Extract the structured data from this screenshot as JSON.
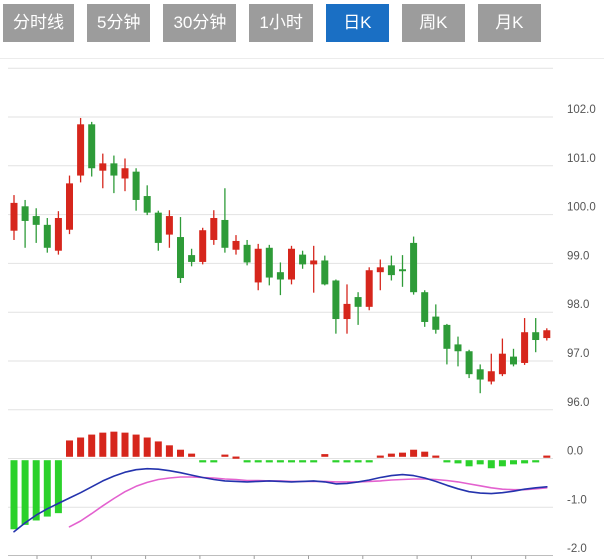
{
  "toolbar": {
    "tabs": [
      {
        "label": "分时线",
        "active": false
      },
      {
        "label": "5分钟",
        "active": false
      },
      {
        "label": "30分钟",
        "active": false
      },
      {
        "label": "1小时",
        "active": false
      },
      {
        "label": "日K",
        "active": true
      },
      {
        "label": "周K",
        "active": false
      },
      {
        "label": "月K",
        "active": false
      }
    ],
    "colors": {
      "active_bg": "#1a6fc4",
      "inactive_bg": "#9c9c9c",
      "text": "#ffffff"
    }
  },
  "chart_data": {
    "type": "candlestick",
    "title": "",
    "timeframe_selected": "日K",
    "legend_position": "none",
    "grid": true,
    "price_axis": {
      "position": "right",
      "tick_labels": [
        "102.0",
        "101.0",
        "100.0",
        "99.0",
        "98.0",
        "97.0",
        "96.0"
      ],
      "tick_values": [
        102,
        101,
        100,
        99,
        98,
        97,
        96
      ],
      "ylim": [
        96,
        103
      ]
    },
    "indicator_axis": {
      "position": "right",
      "tick_labels": [
        "0.0",
        "-1.0",
        "-2.0"
      ],
      "tick_values": [
        0,
        -1,
        -2
      ],
      "ylim": [
        -2,
        0.6
      ]
    },
    "candles": [
      {
        "o": 99.67,
        "h": 100.4,
        "l": 99.48,
        "c": 100.24
      },
      {
        "o": 100.17,
        "h": 100.3,
        "l": 99.32,
        "c": 99.87
      },
      {
        "o": 99.97,
        "h": 100.13,
        "l": 99.42,
        "c": 99.79
      },
      {
        "o": 99.79,
        "h": 99.93,
        "l": 99.22,
        "c": 99.32
      },
      {
        "o": 99.26,
        "h": 100.07,
        "l": 99.18,
        "c": 99.93
      },
      {
        "o": 99.69,
        "h": 100.8,
        "l": 99.6,
        "c": 100.64
      },
      {
        "o": 100.8,
        "h": 101.98,
        "l": 100.66,
        "c": 101.85
      },
      {
        "o": 101.85,
        "h": 101.9,
        "l": 100.78,
        "c": 100.95
      },
      {
        "o": 100.9,
        "h": 101.25,
        "l": 100.54,
        "c": 101.05
      },
      {
        "o": 101.05,
        "h": 101.21,
        "l": 100.44,
        "c": 100.8
      },
      {
        "o": 100.74,
        "h": 101.15,
        "l": 100.48,
        "c": 100.95
      },
      {
        "o": 100.88,
        "h": 100.95,
        "l": 100.08,
        "c": 100.3
      },
      {
        "o": 100.38,
        "h": 100.6,
        "l": 99.99,
        "c": 100.04
      },
      {
        "o": 100.04,
        "h": 100.08,
        "l": 99.26,
        "c": 99.42
      },
      {
        "o": 99.59,
        "h": 100.09,
        "l": 99.32,
        "c": 99.97
      },
      {
        "o": 99.54,
        "h": 99.95,
        "l": 98.6,
        "c": 98.7
      },
      {
        "o": 99.17,
        "h": 99.3,
        "l": 98.94,
        "c": 99.03
      },
      {
        "o": 99.03,
        "h": 99.73,
        "l": 98.98,
        "c": 99.68
      },
      {
        "o": 99.48,
        "h": 100.09,
        "l": 99.38,
        "c": 99.93
      },
      {
        "o": 99.89,
        "h": 100.54,
        "l": 99.22,
        "c": 99.32
      },
      {
        "o": 99.28,
        "h": 99.58,
        "l": 99.18,
        "c": 99.46
      },
      {
        "o": 99.38,
        "h": 99.48,
        "l": 98.96,
        "c": 99.02
      },
      {
        "o": 98.61,
        "h": 99.4,
        "l": 98.45,
        "c": 99.3
      },
      {
        "o": 99.32,
        "h": 99.38,
        "l": 98.55,
        "c": 98.71
      },
      {
        "o": 98.82,
        "h": 99.02,
        "l": 98.35,
        "c": 98.67
      },
      {
        "o": 98.67,
        "h": 99.36,
        "l": 98.57,
        "c": 99.3
      },
      {
        "o": 99.18,
        "h": 99.26,
        "l": 98.89,
        "c": 98.98
      },
      {
        "o": 98.98,
        "h": 99.36,
        "l": 98.4,
        "c": 99.06
      },
      {
        "o": 99.06,
        "h": 99.16,
        "l": 98.55,
        "c": 98.57
      },
      {
        "o": 98.65,
        "h": 98.67,
        "l": 97.56,
        "c": 97.86
      },
      {
        "o": 97.86,
        "h": 98.57,
        "l": 97.56,
        "c": 98.17
      },
      {
        "o": 98.31,
        "h": 98.41,
        "l": 97.74,
        "c": 98.11
      },
      {
        "o": 98.11,
        "h": 98.92,
        "l": 98.04,
        "c": 98.86
      },
      {
        "o": 98.82,
        "h": 99.08,
        "l": 98.45,
        "c": 98.92
      },
      {
        "o": 98.96,
        "h": 99.16,
        "l": 98.65,
        "c": 98.76
      },
      {
        "o": 98.88,
        "h": 99.17,
        "l": 98.52,
        "c": 98.84
      },
      {
        "o": 99.42,
        "h": 99.55,
        "l": 98.36,
        "c": 98.41
      },
      {
        "o": 98.41,
        "h": 98.45,
        "l": 97.7,
        "c": 97.8
      },
      {
        "o": 97.91,
        "h": 98.16,
        "l": 97.56,
        "c": 97.64
      },
      {
        "o": 97.74,
        "h": 97.76,
        "l": 96.93,
        "c": 97.25
      },
      {
        "o": 97.34,
        "h": 97.5,
        "l": 96.89,
        "c": 97.2
      },
      {
        "o": 97.2,
        "h": 97.23,
        "l": 96.65,
        "c": 96.73
      },
      {
        "o": 96.83,
        "h": 96.93,
        "l": 96.34,
        "c": 96.62
      },
      {
        "o": 96.58,
        "h": 97.15,
        "l": 96.52,
        "c": 96.79
      },
      {
        "o": 96.73,
        "h": 97.46,
        "l": 96.69,
        "c": 97.15
      },
      {
        "o": 97.09,
        "h": 97.25,
        "l": 96.89,
        "c": 96.93
      },
      {
        "o": 96.96,
        "h": 97.88,
        "l": 96.92,
        "c": 97.59
      },
      {
        "o": 97.59,
        "h": 97.88,
        "l": 97.18,
        "c": 97.43
      },
      {
        "o": 97.47,
        "h": 97.67,
        "l": 97.42,
        "c": 97.63
      }
    ],
    "macd": {
      "histogram": [
        -1.45,
        -1.36,
        -1.27,
        -1.19,
        -1.12,
        0.37,
        0.43,
        0.49,
        0.53,
        0.55,
        0.53,
        0.49,
        0.43,
        0.35,
        0.27,
        0.18,
        0.1,
        -0.05,
        -0.06,
        0.08,
        0.04,
        -0.04,
        -0.06,
        -0.07,
        -0.08,
        -0.06,
        -0.08,
        -0.05,
        0.09,
        -0.04,
        -0.06,
        -0.08,
        -0.07,
        0.06,
        0.1,
        0.12,
        0.18,
        0.14,
        0.06,
        -0.05,
        -0.1,
        -0.16,
        -0.12,
        -0.2,
        -0.16,
        -0.12,
        -0.1,
        -0.05,
        0.06
      ],
      "dif": [
        -1.5,
        -1.32,
        -1.16,
        -1.03,
        -0.92,
        -0.81,
        -0.7,
        -0.58,
        -0.46,
        -0.36,
        -0.28,
        -0.23,
        -0.21,
        -0.22,
        -0.25,
        -0.29,
        -0.34,
        -0.39,
        -0.43,
        -0.46,
        -0.47,
        -0.48,
        -0.47,
        -0.46,
        -0.47,
        -0.48,
        -0.47,
        -0.46,
        -0.48,
        -0.52,
        -0.51,
        -0.48,
        -0.44,
        -0.39,
        -0.35,
        -0.33,
        -0.35,
        -0.4,
        -0.47,
        -0.55,
        -0.62,
        -0.68,
        -0.71,
        -0.72,
        -0.7,
        -0.67,
        -0.63,
        -0.6,
        -0.58
      ],
      "dea": [
        null,
        null,
        null,
        null,
        null,
        -1.4,
        -1.28,
        -1.13,
        -0.97,
        -0.82,
        -0.68,
        -0.57,
        -0.49,
        -0.43,
        -0.4,
        -0.38,
        -0.38,
        -0.39,
        -0.4,
        -0.42,
        -0.43,
        -0.45,
        -0.45,
        -0.46,
        -0.46,
        -0.47,
        -0.47,
        -0.47,
        -0.47,
        -0.48,
        -0.48,
        -0.48,
        -0.47,
        -0.46,
        -0.44,
        -0.43,
        -0.42,
        -0.42,
        -0.43,
        -0.45,
        -0.48,
        -0.52,
        -0.56,
        -0.6,
        -0.63,
        -0.64,
        -0.64,
        -0.62,
        -0.6
      ]
    },
    "colors": {
      "up": "#d6261c",
      "down": "#2e9b38",
      "hist_pos": "#d6261c",
      "hist_neg": "#2bd12b",
      "dif_line": "#2433ad",
      "dea_line": "#e361cf",
      "grid": "#e2e2e2",
      "axis": "#bdbdbd",
      "label": "#555555"
    }
  }
}
